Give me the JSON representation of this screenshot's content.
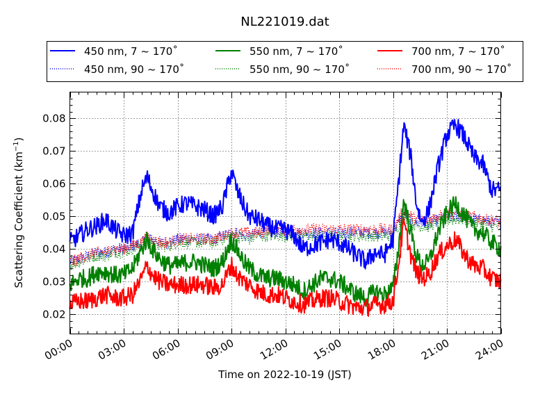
{
  "chart_data": {
    "type": "line",
    "title": "NL221019.dat",
    "xlabel": "Time on 2022-10-19 (JST)",
    "ylabel": "Scattering Coefficient (km",
    "ylabel_sup": "−1",
    "ylabel_end": ")",
    "xlim": [
      0,
      24
    ],
    "ylim": [
      0.014,
      0.088
    ],
    "x_unit": "hours",
    "x_ticks": [
      0,
      3,
      6,
      9,
      12,
      15,
      18,
      21,
      24
    ],
    "x_tick_labels": [
      "00:00",
      "03:00",
      "06:00",
      "09:00",
      "12:00",
      "15:00",
      "18:00",
      "21:00",
      "24:00"
    ],
    "y_ticks": [
      0.02,
      0.03,
      0.04,
      0.05,
      0.06,
      0.07,
      0.08
    ],
    "y_tick_labels": [
      "0.02",
      "0.03",
      "0.04",
      "0.05",
      "0.06",
      "0.07",
      "0.08"
    ],
    "grid": true,
    "legend_position": "top-outside",
    "x": [
      0,
      0.5,
      1,
      1.5,
      2,
      2.5,
      3,
      3.5,
      4,
      4.3,
      4.6,
      5,
      5.5,
      6,
      6.5,
      7,
      7.5,
      8,
      8.5,
      9,
      9.3,
      9.7,
      10,
      10.5,
      11,
      11.5,
      12,
      12.5,
      13,
      13.5,
      14,
      14.5,
      15,
      15.5,
      16,
      16.5,
      17,
      17.5,
      18,
      18.3,
      18.6,
      19,
      19.3,
      19.6,
      20,
      20.5,
      21,
      21.5,
      22,
      22.5,
      23,
      23.5,
      24
    ],
    "series": [
      {
        "name": "450 nm, 7 ~ 170˚",
        "color": "#0000ff",
        "style": "solid",
        "values": [
          0.042,
          0.044,
          0.046,
          0.047,
          0.049,
          0.046,
          0.044,
          0.045,
          0.058,
          0.062,
          0.058,
          0.053,
          0.051,
          0.053,
          0.054,
          0.053,
          0.052,
          0.05,
          0.053,
          0.064,
          0.058,
          0.053,
          0.05,
          0.049,
          0.047,
          0.046,
          0.046,
          0.044,
          0.04,
          0.041,
          0.042,
          0.043,
          0.042,
          0.04,
          0.038,
          0.036,
          0.039,
          0.038,
          0.043,
          0.06,
          0.078,
          0.068,
          0.054,
          0.048,
          0.052,
          0.065,
          0.075,
          0.078,
          0.074,
          0.068,
          0.066,
          0.058,
          0.058
        ]
      },
      {
        "name": "550 nm, 7 ~ 170˚",
        "color": "#008000",
        "style": "solid",
        "values": [
          0.029,
          0.031,
          0.031,
          0.033,
          0.033,
          0.032,
          0.032,
          0.034,
          0.04,
          0.043,
          0.04,
          0.037,
          0.035,
          0.035,
          0.036,
          0.036,
          0.035,
          0.034,
          0.036,
          0.043,
          0.04,
          0.036,
          0.034,
          0.032,
          0.031,
          0.031,
          0.03,
          0.029,
          0.027,
          0.029,
          0.031,
          0.031,
          0.03,
          0.028,
          0.026,
          0.025,
          0.027,
          0.026,
          0.028,
          0.04,
          0.055,
          0.045,
          0.038,
          0.035,
          0.036,
          0.045,
          0.051,
          0.054,
          0.05,
          0.046,
          0.045,
          0.042,
          0.04
        ]
      },
      {
        "name": "700 nm, 7 ~ 170˚",
        "color": "#ff0000",
        "style": "solid",
        "values": [
          0.023,
          0.024,
          0.024,
          0.025,
          0.026,
          0.025,
          0.025,
          0.026,
          0.031,
          0.035,
          0.032,
          0.03,
          0.029,
          0.029,
          0.029,
          0.029,
          0.029,
          0.028,
          0.029,
          0.035,
          0.032,
          0.03,
          0.029,
          0.027,
          0.026,
          0.026,
          0.025,
          0.024,
          0.023,
          0.024,
          0.025,
          0.025,
          0.024,
          0.023,
          0.022,
          0.022,
          0.023,
          0.023,
          0.024,
          0.035,
          0.048,
          0.038,
          0.033,
          0.031,
          0.032,
          0.038,
          0.041,
          0.043,
          0.038,
          0.035,
          0.034,
          0.031,
          0.03
        ]
      },
      {
        "name": "450 nm, 90 ~ 170˚",
        "color": "#0000ff",
        "style": "dotted",
        "values": [
          0.036,
          0.037,
          0.038,
          0.039,
          0.039,
          0.04,
          0.04,
          0.041,
          0.042,
          0.043,
          0.043,
          0.042,
          0.042,
          0.043,
          0.043,
          0.043,
          0.043,
          0.043,
          0.044,
          0.045,
          0.045,
          0.044,
          0.044,
          0.045,
          0.045,
          0.045,
          0.045,
          0.045,
          0.045,
          0.045,
          0.045,
          0.045,
          0.045,
          0.045,
          0.045,
          0.045,
          0.045,
          0.045,
          0.045,
          0.048,
          0.051,
          0.049,
          0.048,
          0.048,
          0.048,
          0.049,
          0.05,
          0.05,
          0.05,
          0.049,
          0.049,
          0.048,
          0.048
        ]
      },
      {
        "name": "550 nm, 90 ~ 170˚",
        "color": "#008000",
        "style": "dotted",
        "values": [
          0.035,
          0.036,
          0.037,
          0.038,
          0.038,
          0.039,
          0.039,
          0.04,
          0.041,
          0.043,
          0.042,
          0.041,
          0.041,
          0.042,
          0.042,
          0.042,
          0.042,
          0.042,
          0.043,
          0.044,
          0.044,
          0.043,
          0.043,
          0.044,
          0.044,
          0.044,
          0.044,
          0.044,
          0.044,
          0.044,
          0.044,
          0.044,
          0.044,
          0.044,
          0.044,
          0.044,
          0.044,
          0.044,
          0.044,
          0.047,
          0.05,
          0.048,
          0.047,
          0.047,
          0.047,
          0.048,
          0.049,
          0.049,
          0.049,
          0.048,
          0.048,
          0.047,
          0.047
        ]
      },
      {
        "name": "700 nm, 90 ~ 170˚",
        "color": "#ff0000",
        "style": "dotted",
        "values": [
          0.036,
          0.037,
          0.038,
          0.039,
          0.039,
          0.04,
          0.04,
          0.041,
          0.042,
          0.044,
          0.043,
          0.042,
          0.042,
          0.043,
          0.043,
          0.043,
          0.043,
          0.043,
          0.044,
          0.045,
          0.045,
          0.045,
          0.045,
          0.045,
          0.046,
          0.046,
          0.046,
          0.046,
          0.046,
          0.046,
          0.046,
          0.046,
          0.046,
          0.046,
          0.046,
          0.046,
          0.046,
          0.046,
          0.046,
          0.049,
          0.052,
          0.05,
          0.049,
          0.049,
          0.049,
          0.05,
          0.051,
          0.051,
          0.05,
          0.05,
          0.049,
          0.049,
          0.048
        ]
      }
    ],
    "legend": [
      {
        "label": "450 nm, 7 ~ 170˚",
        "color": "#0000ff",
        "style": "solid"
      },
      {
        "label": "550 nm, 7 ~ 170˚",
        "color": "#008000",
        "style": "solid"
      },
      {
        "label": "700 nm, 7 ~ 170˚",
        "color": "#ff0000",
        "style": "solid"
      },
      {
        "label": "450 nm, 90 ~ 170˚",
        "color": "#0000ff",
        "style": "dotted"
      },
      {
        "label": "550 nm, 90 ~ 170˚",
        "color": "#008000",
        "style": "dotted"
      },
      {
        "label": "700 nm, 90 ~ 170˚",
        "color": "#ff0000",
        "style": "dotted"
      }
    ]
  }
}
